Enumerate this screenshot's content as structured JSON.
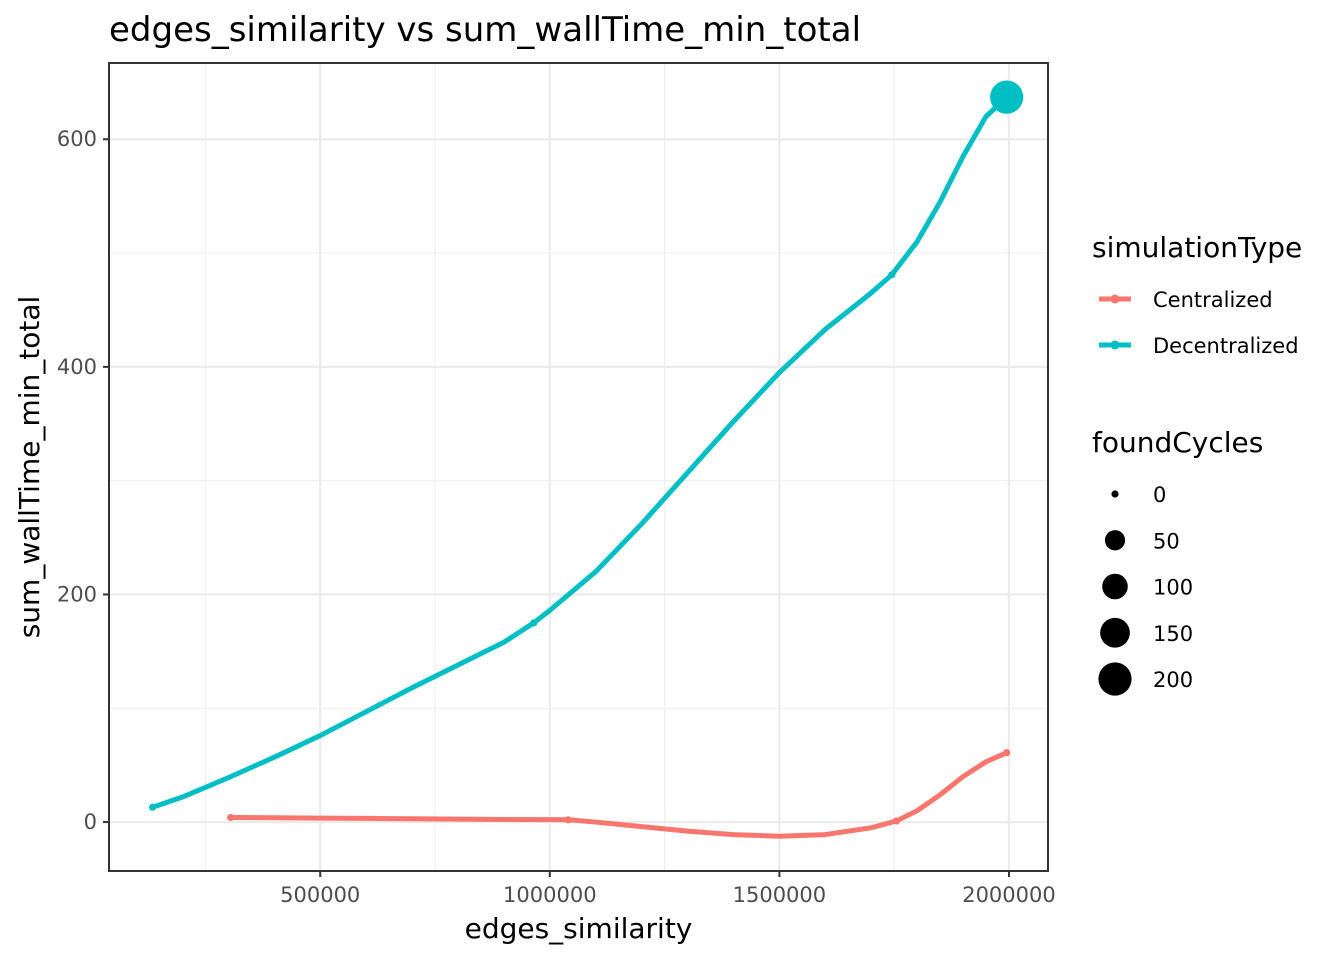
{
  "chart_data": {
    "type": "line",
    "title": "edges_similarity  vs  sum_wallTime_min_total",
    "xlabel": "edges_similarity",
    "ylabel": "sum_wallTime_min_total",
    "xlim": [
      40000,
      2085000
    ],
    "ylim": [
      -43,
      667
    ],
    "x_ticks": [
      500000,
      1000000,
      1500000,
      2000000
    ],
    "x_tick_labels": [
      "500000",
      "1000000",
      "1500000",
      "2000000"
    ],
    "y_ticks": [
      0,
      200,
      400,
      600
    ],
    "y_tick_labels": [
      "0",
      "200",
      "400",
      "600"
    ],
    "grid": true,
    "series": [
      {
        "name": "Centralized",
        "color": "#F8766D",
        "x": [
          305000,
          1040000,
          1755000,
          1995000
        ],
        "y": [
          4,
          2,
          1,
          61
        ],
        "size": [
          0,
          0,
          0,
          0
        ],
        "curve_x": [
          305000,
          400000,
          500000,
          600000,
          700000,
          800000,
          900000,
          1000000,
          1040000,
          1100000,
          1200000,
          1300000,
          1400000,
          1500000,
          1600000,
          1700000,
          1755000,
          1800000,
          1850000,
          1900000,
          1950000,
          1995000
        ],
        "curve_y": [
          4,
          3.8,
          3.5,
          3.2,
          2.9,
          2.6,
          2.3,
          2.1,
          2,
          0,
          -4,
          -8,
          -11,
          -12.5,
          -11,
          -5,
          1,
          10,
          24,
          40,
          53,
          61
        ]
      },
      {
        "name": "Decentralized",
        "color": "#00BFC4",
        "x": [
          135000,
          965000,
          1745000,
          1995000
        ],
        "y": [
          13,
          175,
          481,
          637
        ],
        "size": [
          0,
          0,
          0,
          200
        ],
        "curve_x": [
          135000,
          200000,
          300000,
          400000,
          500000,
          600000,
          700000,
          800000,
          900000,
          965000,
          1000000,
          1100000,
          1200000,
          1300000,
          1400000,
          1500000,
          1600000,
          1700000,
          1745000,
          1800000,
          1850000,
          1900000,
          1950000,
          1995000
        ],
        "curve_y": [
          13,
          22,
          39,
          57,
          76,
          97,
          118,
          138,
          158,
          175,
          186,
          220,
          262,
          307,
          352,
          395,
          433,
          465,
          481,
          510,
          545,
          585,
          620,
          637
        ]
      }
    ],
    "legend": {
      "position": "right",
      "color_title": "simulationType",
      "color_items": [
        "Centralized",
        "Decentralized"
      ],
      "size_title": "foundCycles",
      "size_items": [
        "0",
        "50",
        "100",
        "150",
        "200"
      ],
      "size_values": [
        0,
        50,
        100,
        150,
        200
      ]
    }
  }
}
